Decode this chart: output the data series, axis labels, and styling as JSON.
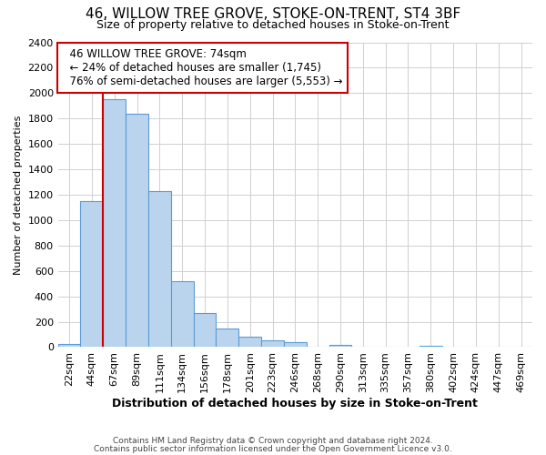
{
  "title1": "46, WILLOW TREE GROVE, STOKE-ON-TRENT, ST4 3BF",
  "title2": "Size of property relative to detached houses in Stoke-on-Trent",
  "xlabel": "Distribution of detached houses by size in Stoke-on-Trent",
  "ylabel": "Number of detached properties",
  "bar_labels": [
    "22sqm",
    "44sqm",
    "67sqm",
    "89sqm",
    "111sqm",
    "134sqm",
    "156sqm",
    "178sqm",
    "201sqm",
    "223sqm",
    "246sqm",
    "268sqm",
    "290sqm",
    "313sqm",
    "335sqm",
    "357sqm",
    "380sqm",
    "402sqm",
    "424sqm",
    "447sqm",
    "469sqm"
  ],
  "bar_values": [
    25,
    1150,
    1950,
    1840,
    1225,
    520,
    265,
    150,
    80,
    50,
    40,
    0,
    15,
    0,
    0,
    0,
    10,
    0,
    0,
    0,
    0
  ],
  "bar_color": "#bad4ed",
  "bar_edge_color": "#5b9bd5",
  "annotation_text_line1": "46 WILLOW TREE GROVE: 74sqm",
  "annotation_text_line2": "← 24% of detached houses are smaller (1,745)",
  "annotation_text_line3": "76% of semi-detached houses are larger (5,553) →",
  "annotation_box_color": "#cc0000",
  "vline_color": "#cc0000",
  "vline_x_index": 2,
  "ylim": [
    0,
    2400
  ],
  "yticks": [
    0,
    200,
    400,
    600,
    800,
    1000,
    1200,
    1400,
    1600,
    1800,
    2000,
    2200,
    2400
  ],
  "footer1": "Contains HM Land Registry data © Crown copyright and database right 2024.",
  "footer2": "Contains public sector information licensed under the Open Government Licence v3.0.",
  "bg_color": "#ffffff",
  "grid_color": "#d0d0d0",
  "title1_fontsize": 11,
  "title2_fontsize": 9,
  "xlabel_fontsize": 9,
  "ylabel_fontsize": 8,
  "tick_fontsize": 8,
  "annot_fontsize": 8.5,
  "footer_fontsize": 6.5
}
